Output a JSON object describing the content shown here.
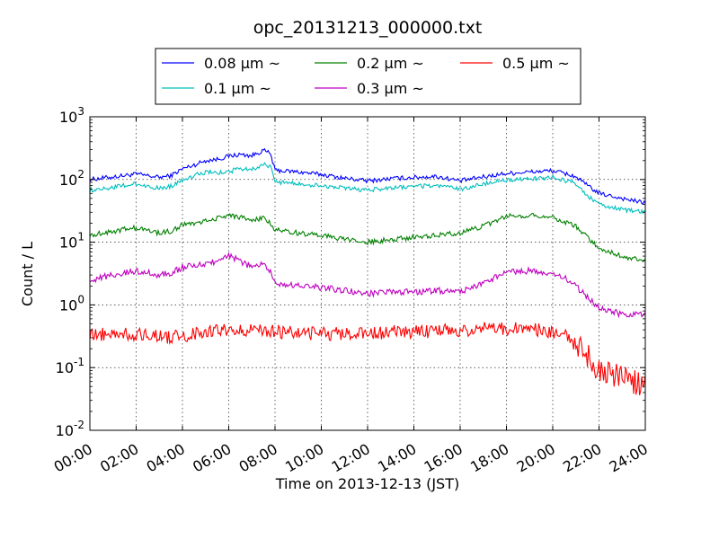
{
  "chart_data": {
    "type": "line",
    "title": "opc_20131213_000000.txt",
    "xlabel": "Time on 2013-12-13 (JST)",
    "ylabel": "Count / L",
    "yscale": "log",
    "xlim_hours": [
      0,
      24
    ],
    "ylim": [
      0.01,
      1000
    ],
    "grid": true,
    "legend_location": "top-center",
    "xtick_labels": [
      "00:00",
      "02:00",
      "04:00",
      "06:00",
      "08:00",
      "10:00",
      "12:00",
      "14:00",
      "16:00",
      "18:00",
      "20:00",
      "22:00",
      "24:00"
    ],
    "ytick_labels": [
      {
        "base": "10",
        "exp": "-2"
      },
      {
        "base": "10",
        "exp": "-1"
      },
      {
        "base": "10",
        "exp": "0"
      },
      {
        "base": "10",
        "exp": "1"
      },
      {
        "base": "10",
        "exp": "2"
      },
      {
        "base": "10",
        "exp": "3"
      }
    ],
    "x_hours": [
      0,
      1,
      2,
      3,
      3.5,
      4,
      4.5,
      5,
      5.5,
      6,
      6.5,
      7,
      7.5,
      7.8,
      8,
      9,
      10,
      11,
      12,
      13,
      14,
      15,
      16,
      17,
      18,
      19,
      20,
      20.7,
      21,
      21.5,
      22,
      23,
      24
    ],
    "series": [
      {
        "name": "0.08 μm ~",
        "color": "#0000ff",
        "values": [
          100,
          110,
          122,
          108,
          115,
          148,
          170,
          200,
          210,
          235,
          250,
          240,
          290,
          260,
          140,
          132,
          120,
          105,
          95,
          103,
          108,
          112,
          95,
          110,
          125,
          132,
          138,
          120,
          110,
          80,
          60,
          50,
          42
        ]
      },
      {
        "name": "0.1 μm ~",
        "color": "#00bfbf",
        "values": [
          68,
          75,
          85,
          72,
          78,
          100,
          115,
          130,
          128,
          132,
          150,
          145,
          175,
          160,
          92,
          85,
          80,
          72,
          68,
          73,
          77,
          80,
          70,
          85,
          98,
          102,
          108,
          92,
          85,
          55,
          40,
          33,
          30
        ]
      },
      {
        "name": "0.2 μm ~",
        "color": "#008000",
        "values": [
          13,
          15,
          17,
          14,
          15,
          19,
          20,
          22,
          24,
          27,
          25,
          22,
          24,
          20,
          16,
          14,
          13,
          11,
          10,
          11,
          12,
          13,
          14,
          18,
          26,
          27,
          25,
          20,
          18,
          12,
          8,
          6,
          5
        ]
      },
      {
        "name": "0.3 μm ~",
        "color": "#bf00bf",
        "values": [
          2.5,
          3.0,
          3.5,
          3.0,
          3.2,
          4.0,
          4.2,
          4.5,
          5.0,
          6.0,
          5.0,
          4.0,
          4.5,
          3.5,
          2.2,
          2.0,
          1.9,
          1.7,
          1.5,
          1.6,
          1.6,
          1.7,
          1.6,
          2.2,
          3.3,
          3.5,
          3.0,
          2.5,
          2.0,
          1.3,
          0.9,
          0.7,
          0.7
        ]
      },
      {
        "name": "0.5 μm ~",
        "color": "#ff0000",
        "values": [
          0.32,
          0.35,
          0.34,
          0.33,
          0.3,
          0.32,
          0.35,
          0.37,
          0.38,
          0.4,
          0.4,
          0.4,
          0.42,
          0.38,
          0.37,
          0.36,
          0.35,
          0.34,
          0.35,
          0.37,
          0.38,
          0.38,
          0.4,
          0.42,
          0.42,
          0.4,
          0.38,
          0.3,
          0.22,
          0.15,
          0.09,
          0.07,
          0.05
        ]
      }
    ]
  }
}
